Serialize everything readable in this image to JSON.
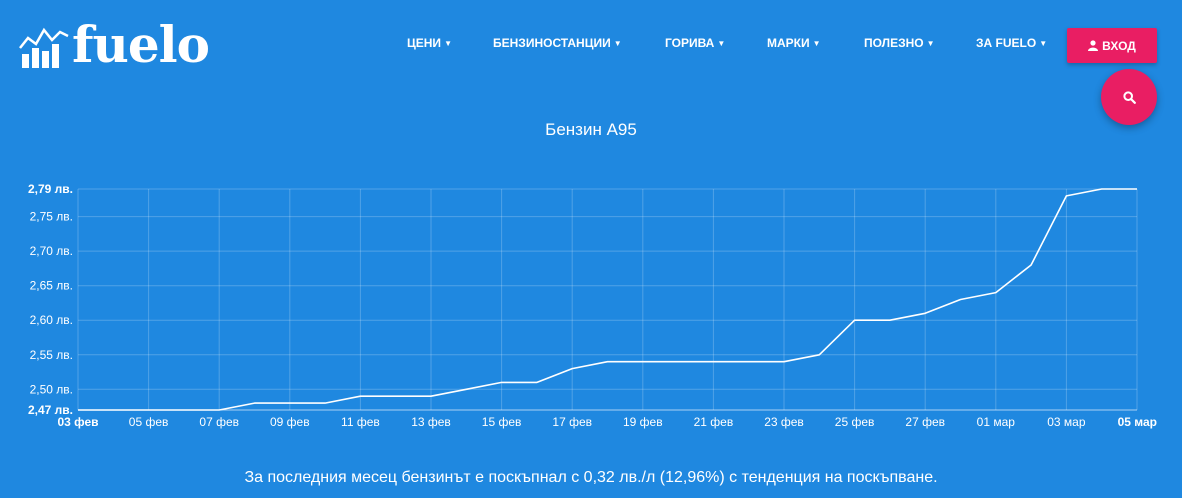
{
  "brand": {
    "name": "fuelo"
  },
  "nav": [
    {
      "label": "ЦЕНИ"
    },
    {
      "label": "БЕНЗИНОСТАНЦИИ"
    },
    {
      "label": "ГОРИВА"
    },
    {
      "label": "МАРКИ"
    },
    {
      "label": "ПОЛЕЗНО"
    },
    {
      "label": "ЗА FUELO"
    }
  ],
  "login": {
    "label": "ВХОД",
    "icon": "user-icon"
  },
  "search": {
    "icon": "search-icon"
  },
  "colors": {
    "background": "#1f88e0",
    "accent": "#e91e63",
    "line": "#ffffff"
  },
  "chart_data": {
    "type": "line",
    "title": "Бензин А95",
    "xlabel": "",
    "ylabel": "",
    "grid": true,
    "x": [
      "03 фев",
      "04 фев",
      "05 фев",
      "06 фев",
      "07 фев",
      "08 фев",
      "09 фев",
      "10 фев",
      "11 фев",
      "12 фев",
      "13 фев",
      "14 фев",
      "15 фев",
      "16 фев",
      "17 фев",
      "18 фев",
      "19 фев",
      "20 фев",
      "21 фев",
      "22 фев",
      "23 фев",
      "24 фев",
      "25 фев",
      "26 фев",
      "27 фев",
      "28 фев",
      "01 мар",
      "02 мар",
      "03 мар",
      "04 мар",
      "05 мар"
    ],
    "series": [
      {
        "values": [
          2.47,
          2.47,
          2.47,
          2.47,
          2.47,
          2.48,
          2.48,
          2.48,
          2.49,
          2.49,
          2.49,
          2.5,
          2.51,
          2.51,
          2.53,
          2.54,
          2.54,
          2.54,
          2.54,
          2.54,
          2.54,
          2.55,
          2.6,
          2.6,
          2.61,
          2.63,
          2.64,
          2.68,
          2.78,
          2.79,
          2.79
        ]
      }
    ],
    "x_tick_labels": [
      "03 фев",
      "05 фев",
      "07 фев",
      "09 фев",
      "11 фев",
      "13 фев",
      "15 фев",
      "17 фев",
      "19 фев",
      "21 фев",
      "23 фев",
      "25 фев",
      "27 фев",
      "01 мар",
      "03 мар",
      "05 мар"
    ],
    "y_ticks": [
      {
        "value": 2.79,
        "label": "2,79 лв.",
        "bold": true
      },
      {
        "value": 2.75,
        "label": "2,75 лв.",
        "bold": false
      },
      {
        "value": 2.7,
        "label": "2,70 лв.",
        "bold": false
      },
      {
        "value": 2.65,
        "label": "2,65 лв.",
        "bold": false
      },
      {
        "value": 2.6,
        "label": "2,60 лв.",
        "bold": false
      },
      {
        "value": 2.55,
        "label": "2,55 лв.",
        "bold": false
      },
      {
        "value": 2.5,
        "label": "2,50 лв.",
        "bold": false
      },
      {
        "value": 2.47,
        "label": "2,47 лв.",
        "bold": true
      }
    ],
    "ylim": [
      2.47,
      2.79
    ]
  },
  "summary": "За последния месец бензинът е поскъпнал с 0,32 лв./л (12,96%) с тенденция на поскъпване."
}
